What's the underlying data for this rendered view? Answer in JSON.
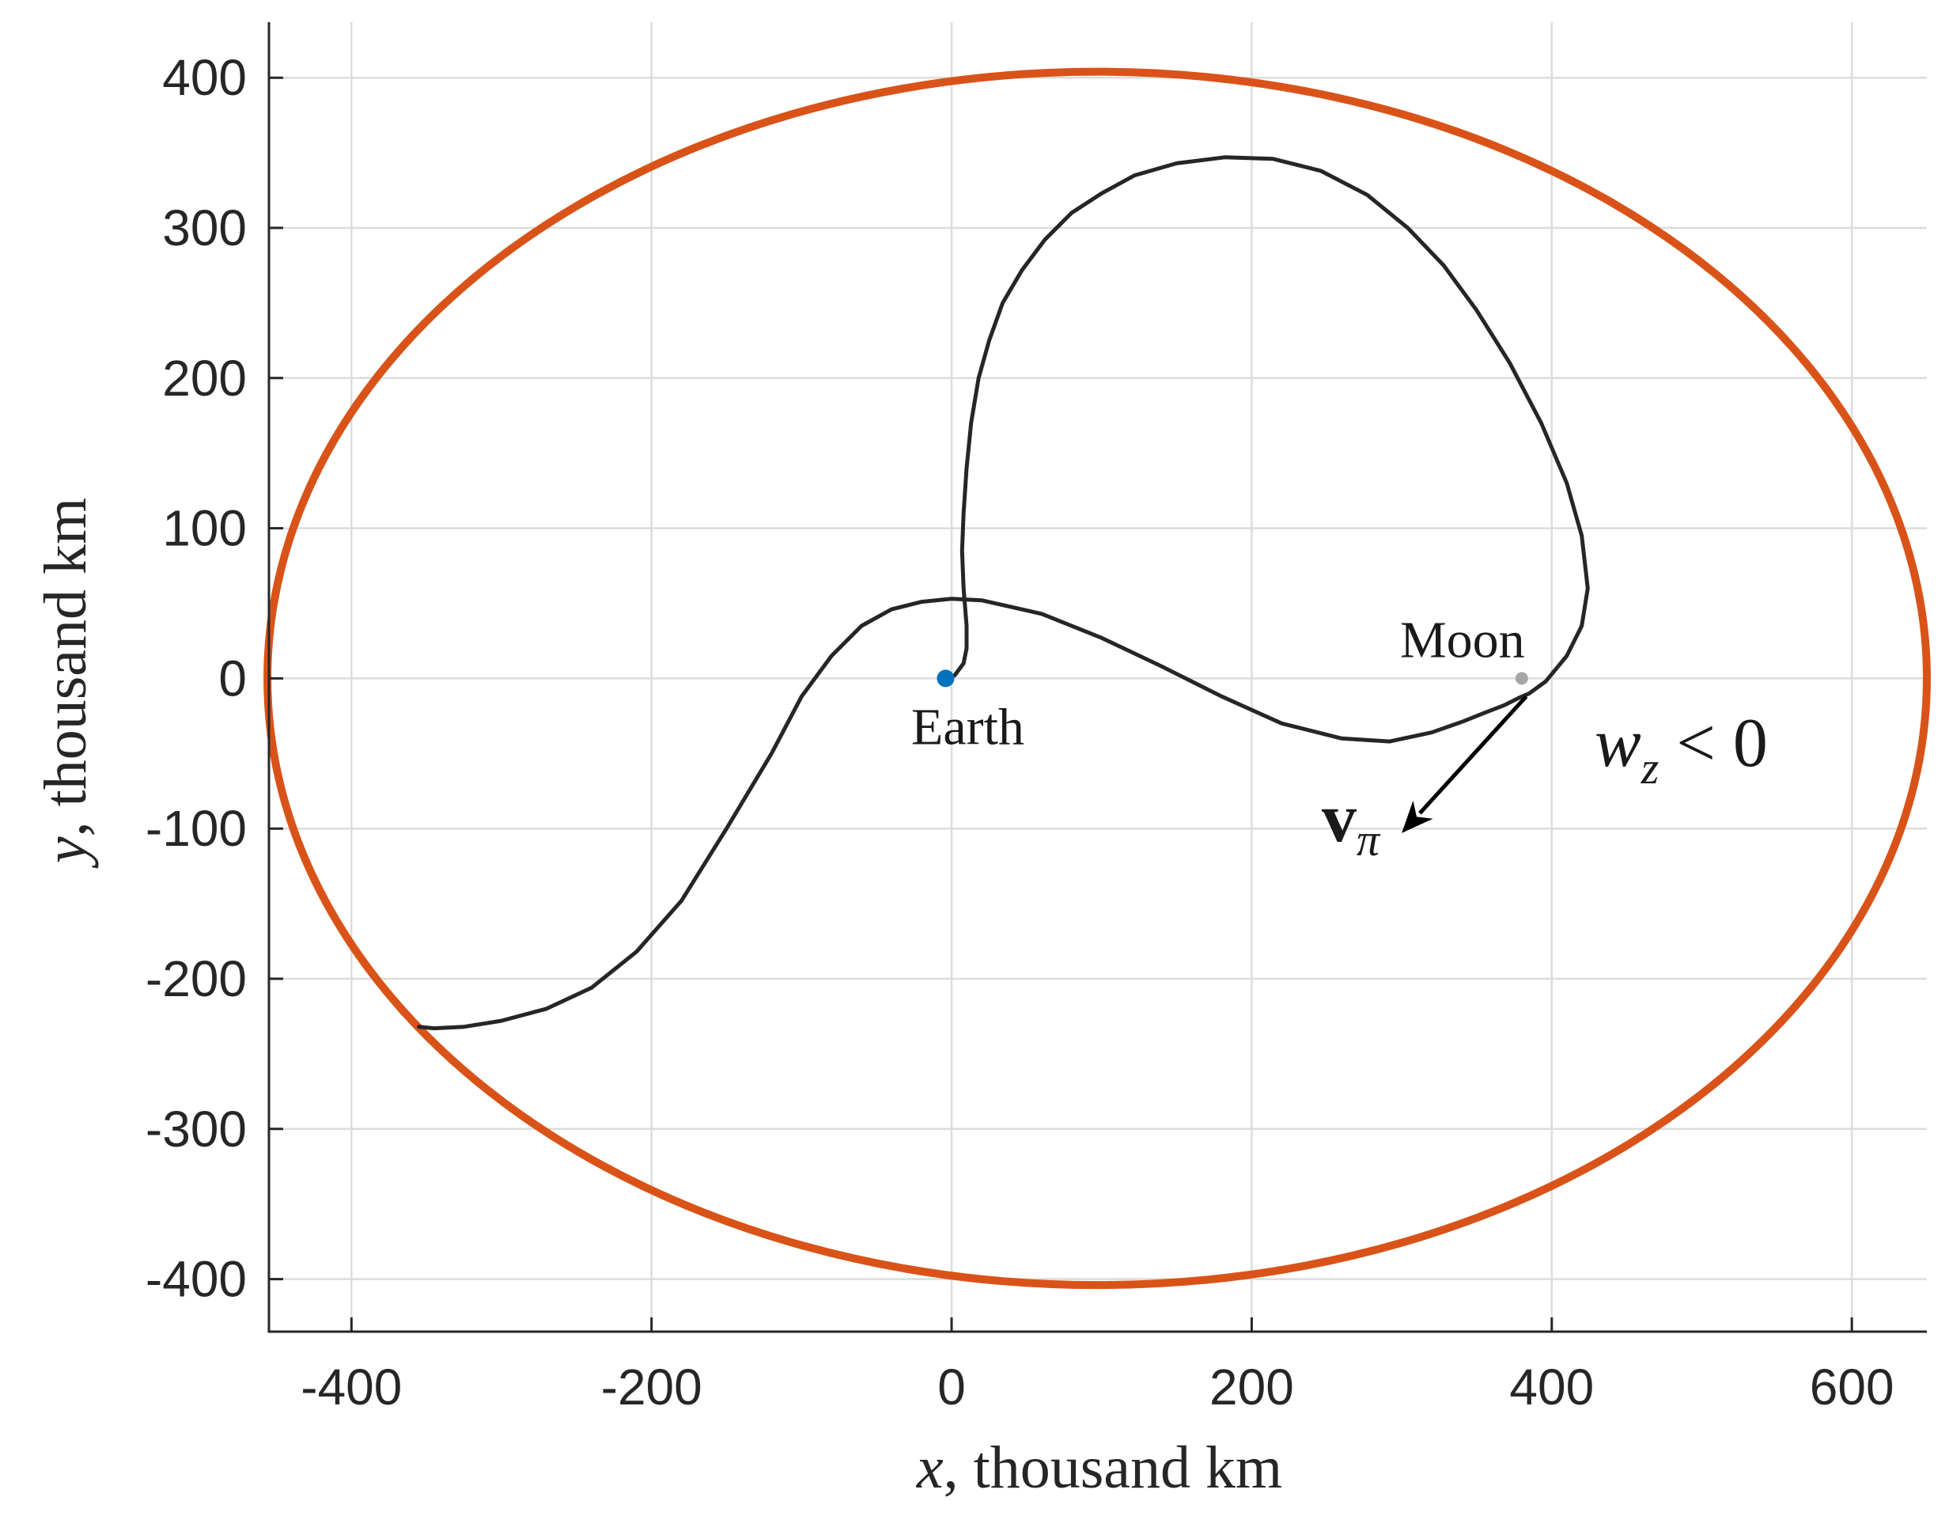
{
  "chart_data": {
    "type": "line",
    "title": "",
    "xlabel_var": "x",
    "xlabel_rest": ", thousand km",
    "ylabel_var": "y",
    "ylabel_rest": ", thousand km",
    "xlim": [
      -455,
      650
    ],
    "ylim": [
      -435,
      437
    ],
    "grid": true,
    "x_ticks": [
      -400,
      -200,
      0,
      200,
      400,
      600
    ],
    "y_ticks": [
      400,
      300,
      200,
      100,
      0,
      -100,
      -200,
      -300,
      -400
    ],
    "x_tick_labels": [
      "-400",
      "-200",
      "0",
      "200",
      "400",
      "600"
    ],
    "y_tick_labels": [
      "400",
      "300",
      "200",
      "100",
      "0",
      "-100",
      "-200",
      "-300",
      "-400"
    ],
    "colors": {
      "boundary": "#d95319",
      "trajectory": "#262626",
      "earth": "#0072bd",
      "moon": "#a6a6a6",
      "arrow": "#000000"
    },
    "series": [
      {
        "type": "ellipse",
        "center": [
          97,
          0
        ],
        "semi_axes": [
          553,
          404
        ]
      },
      {
        "type": "trajectory",
        "x": [
          -3,
          2,
          8,
          10,
          10,
          8,
          7,
          8,
          10,
          13,
          18,
          25,
          34,
          47,
          62,
          80,
          100,
          122,
          150,
          182,
          214,
          246,
          277,
          304,
          328,
          350,
          372,
          393,
          410,
          420,
          424,
          420,
          410,
          396,
          385,
          378,
          368,
          355,
          340,
          320,
          292,
          260,
          220,
          180,
          140,
          100,
          60,
          20,
          0,
          -20,
          -40,
          -60,
          -80,
          -100,
          -120,
          -150,
          -180,
          -210,
          -240,
          -270,
          -300,
          -325,
          -345,
          -355
        ],
        "y": [
          0,
          2,
          10,
          20,
          35,
          60,
          85,
          110,
          140,
          170,
          200,
          225,
          250,
          272,
          292,
          310,
          323,
          335,
          343,
          347,
          346,
          338,
          322,
          300,
          275,
          245,
          210,
          170,
          130,
          95,
          60,
          35,
          15,
          -2,
          -10,
          -13,
          -18,
          -23,
          -29,
          -36,
          -42,
          -40,
          -30,
          -12,
          8,
          27,
          43,
          52,
          53,
          51,
          46,
          35,
          15,
          -12,
          -50,
          -100,
          -148,
          -182,
          -206,
          -220,
          -228,
          -232,
          -233,
          -232
        ]
      },
      {
        "type": "arrow",
        "from": [
          383,
          -12
        ],
        "to": [
          300,
          -103
        ]
      },
      {
        "type": "point",
        "name": "Earth",
        "x": -4,
        "y": 0
      },
      {
        "type": "point",
        "name": "Moon",
        "x": 380,
        "y": 0
      }
    ],
    "annotations": {
      "earth": "Earth",
      "moon": "Moon",
      "vpi_main": "v",
      "vpi_sub": "π",
      "wz_main": "w",
      "wz_sub": "z",
      "wz_rest": " < 0"
    }
  }
}
